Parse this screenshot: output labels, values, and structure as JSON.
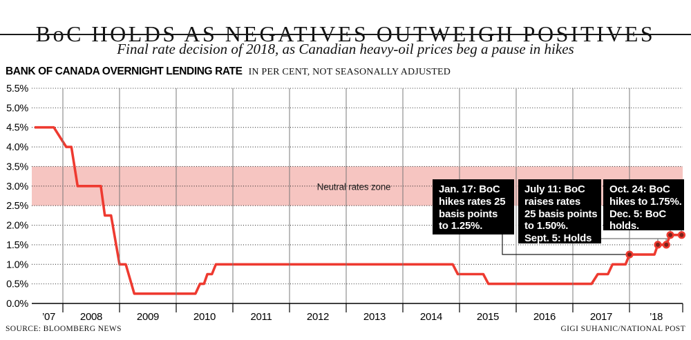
{
  "header": {
    "title": "BoC HOLDS AS NEGATIVES OUTWEIGH POSITIVES",
    "subtitle": "Final rate decision of 2018, as Canadian heavy-oil prices beg a pause in hikes",
    "series_label": "BANK OF CANADA OVERNIGHT LENDING RATE",
    "series_qualifier": "IN PER CENT, NOT SEASONALLY ADJUSTED"
  },
  "footer": {
    "source": "SOURCE: BLOOMBERG NEWS",
    "credit": "GIGI SUHANIC/NATIONAL POST"
  },
  "chart_data": {
    "type": "line",
    "title": "Bank of Canada overnight lending rate",
    "unit": "per cent, not seasonally adjusted",
    "ylim": [
      0,
      5.5
    ],
    "y_tick_labels": [
      "5.5%",
      "5.0%",
      "4.5%",
      "4.0%",
      "3.5%",
      "3.0%",
      "2.5%",
      "2.0%",
      "1.5%",
      "1.0%",
      "0.5%",
      "0.0%"
    ],
    "x_tick_labels": [
      "’07",
      "2008",
      "2009",
      "2010",
      "2011",
      "2012",
      "2013",
      "2014",
      "2015",
      "2016",
      "2017",
      "’18"
    ],
    "xlim": [
      2007.5,
      2018.95
    ],
    "year_gridlines": [
      2008,
      2009,
      2010,
      2011,
      2012,
      2013,
      2014,
      2015,
      2016,
      2017,
      2018
    ],
    "grid": "dotted horizontal each 0.5%",
    "neutral_zone": {
      "label": "Neutral rates zone",
      "from_pct": 2.5,
      "to_pct": 3.5
    },
    "series": [
      {
        "name": "BoC overnight lending rate (%)",
        "points": [
          [
            2007.5,
            4.5
          ],
          [
            2007.84,
            4.5
          ],
          [
            2008.06,
            4.0
          ],
          [
            2008.15,
            4.0
          ],
          [
            2008.26,
            3.0
          ],
          [
            2008.67,
            3.0
          ],
          [
            2008.74,
            2.25
          ],
          [
            2008.85,
            2.25
          ],
          [
            2009.0,
            1.0
          ],
          [
            2009.11,
            1.0
          ],
          [
            2009.26,
            0.25
          ],
          [
            2010.34,
            0.25
          ],
          [
            2010.42,
            0.5
          ],
          [
            2010.49,
            0.5
          ],
          [
            2010.55,
            0.75
          ],
          [
            2010.63,
            0.75
          ],
          [
            2010.7,
            1.0
          ],
          [
            2014.88,
            1.0
          ],
          [
            2014.97,
            0.75
          ],
          [
            2015.42,
            0.75
          ],
          [
            2015.51,
            0.5
          ],
          [
            2017.33,
            0.5
          ],
          [
            2017.44,
            0.75
          ],
          [
            2017.62,
            0.75
          ],
          [
            2017.7,
            1.0
          ],
          [
            2017.93,
            1.0
          ],
          [
            2018.0,
            1.25
          ],
          [
            2018.44,
            1.25
          ],
          [
            2018.5,
            1.5
          ],
          [
            2018.65,
            1.5
          ],
          [
            2018.72,
            1.75
          ],
          [
            2018.92,
            1.75
          ]
        ]
      }
    ],
    "event_markers": [
      {
        "x": 2018.0,
        "rate": 1.25
      },
      {
        "x": 2018.5,
        "rate": 1.5
      },
      {
        "x": 2018.65,
        "rate": 1.5
      },
      {
        "x": 2018.72,
        "rate": 1.75
      },
      {
        "x": 2018.92,
        "rate": 1.75
      }
    ],
    "annotations": [
      {
        "id": "jan17",
        "lines": [
          "Jan. 17: BoC",
          "hikes rates 25",
          "basis points",
          "to 1.25%."
        ]
      },
      {
        "id": "july11",
        "lines": [
          "July 11: BoC",
          "raises rates",
          "25 basis points",
          "to 1.50%.",
          "Sept. 5: Holds"
        ]
      },
      {
        "id": "oct24",
        "lines": [
          "Oct. 24: BoC",
          "hikes to 1.75%.",
          "Dec. 5: BoC",
          "holds."
        ]
      }
    ],
    "colors": {
      "line": "#ee3a30",
      "neutral_zone_fill": "#f6c5c1",
      "marker_fill": "#7a221b",
      "year_gridline": "#787878",
      "dotted_gridline": "#1a1a1a",
      "annotation_bg": "#000000",
      "annotation_text": "#ffffff",
      "leader_black": "#1a1a1a",
      "leader_gray": "#8c8c8c"
    }
  }
}
